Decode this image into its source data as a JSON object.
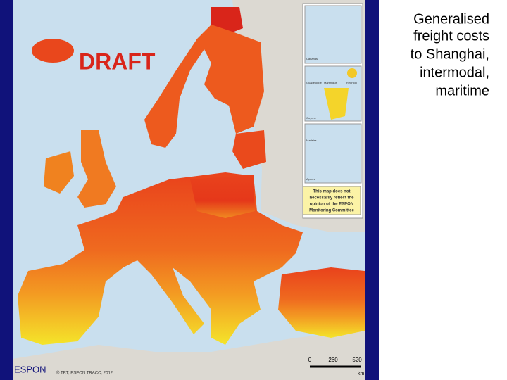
{
  "title_lines": [
    "Generalised",
    "freight costs",
    "to Shanghai,",
    "intermodal,",
    "maritime"
  ],
  "draft": "DRAFT",
  "insets": [
    "Canarias",
    "Guadeloupe",
    "Martinique",
    "Réunion",
    "Guyane",
    "Madeira",
    "Açores"
  ],
  "note": [
    "This map does not",
    "necessarily reflect the",
    "opinion of the ESPON",
    "Monitoring Committee"
  ],
  "scale": {
    "ticks": [
      "0",
      "260",
      "520"
    ],
    "unit": "km"
  },
  "credit": "© TRT, ESPON TRACC, 2012",
  "logo": "ESPON"
}
